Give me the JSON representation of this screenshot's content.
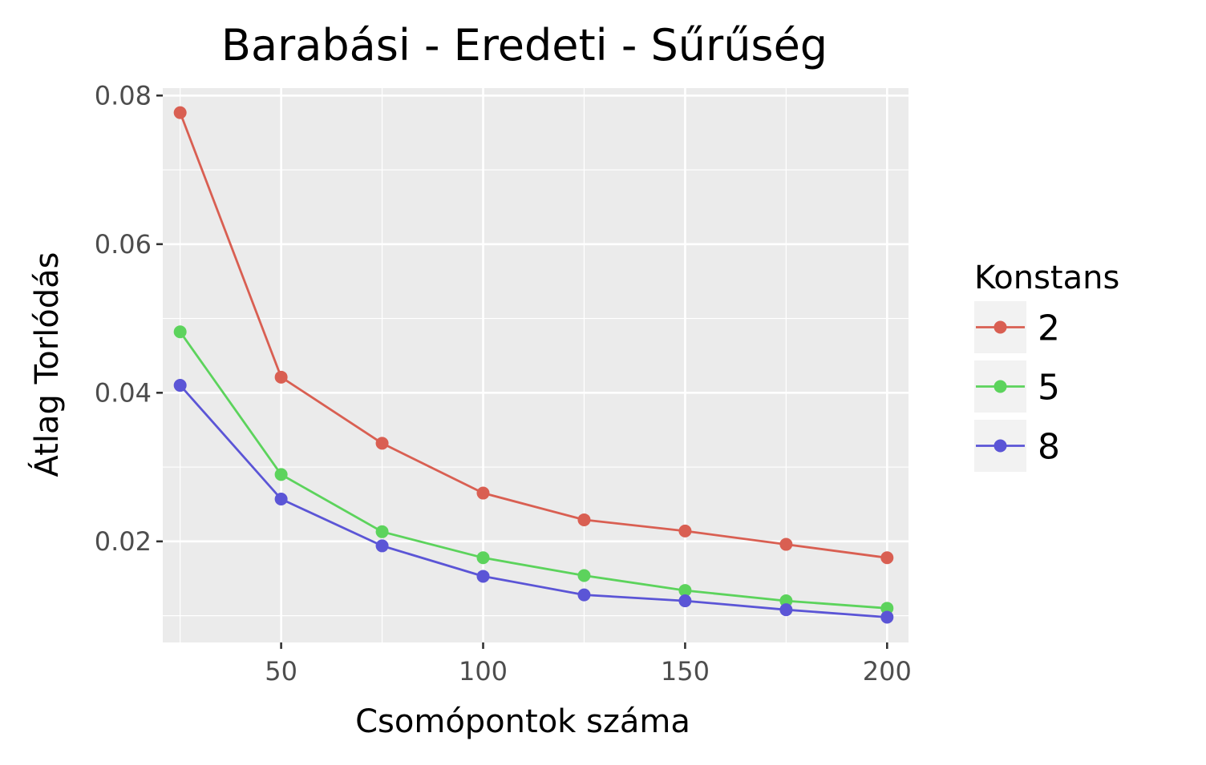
{
  "chart_data": {
    "type": "line",
    "title": "Barabási - Eredeti - Sűrűség",
    "xlabel": "Csomópontok száma",
    "ylabel": "Átlag Torlódás",
    "x": [
      25,
      50,
      75,
      100,
      125,
      150,
      175,
      200
    ],
    "xlim": [
      20.7,
      205.3
    ],
    "ylim": [
      0.0064,
      0.081
    ],
    "x_ticks": [
      50,
      100,
      150,
      200
    ],
    "x_tick_labels": [
      "50",
      "100",
      "150",
      "200"
    ],
    "y_ticks": [
      0.02,
      0.04,
      0.06,
      0.08
    ],
    "y_tick_labels": [
      "0.02",
      "0.04",
      "0.06",
      "0.08"
    ],
    "grid": true,
    "legend": {
      "title": "Konstans",
      "position": "right"
    },
    "series": [
      {
        "name": "2",
        "color": "#D95F52",
        "values": [
          0.0777,
          0.0421,
          0.0332,
          0.0265,
          0.0229,
          0.0214,
          0.0196,
          0.0178
        ]
      },
      {
        "name": "5",
        "color": "#5CD35C",
        "values": [
          0.0482,
          0.029,
          0.0213,
          0.0178,
          0.0154,
          0.0134,
          0.012,
          0.011
        ]
      },
      {
        "name": "8",
        "color": "#5B55D6",
        "values": [
          0.041,
          0.0257,
          0.0194,
          0.0153,
          0.0128,
          0.012,
          0.0108,
          0.0098
        ]
      }
    ]
  }
}
